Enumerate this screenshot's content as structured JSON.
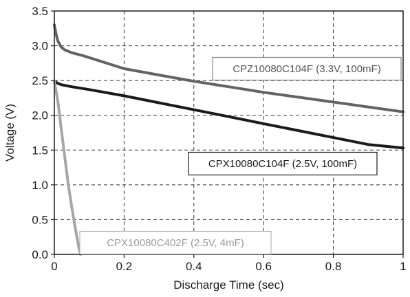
{
  "chart_data": {
    "type": "line",
    "title": "",
    "xlabel": "Discharge Time (sec)",
    "ylabel": "Voltage (V)",
    "xlim": [
      0,
      1
    ],
    "ylim": [
      0,
      3.5
    ],
    "grid": "dashed",
    "x_ticks": [
      {
        "value": 0,
        "label": "0"
      },
      {
        "value": 0.2,
        "label": "0.2"
      },
      {
        "value": 0.4,
        "label": "0.4"
      },
      {
        "value": 0.6,
        "label": "0.6"
      },
      {
        "value": 0.8,
        "label": "0.8"
      },
      {
        "value": 1,
        "label": "1"
      }
    ],
    "y_ticks": [
      {
        "value": 0,
        "label": "0.0"
      },
      {
        "value": 0.5,
        "label": "0.5"
      },
      {
        "value": 1.0,
        "label": "1.0"
      },
      {
        "value": 1.5,
        "label": "1.5"
      },
      {
        "value": 2.0,
        "label": "2.0"
      },
      {
        "value": 2.5,
        "label": "2.5"
      },
      {
        "value": 3.0,
        "label": "3.0"
      },
      {
        "value": 3.5,
        "label": "3.5"
      }
    ],
    "series": [
      {
        "name": "CPZ10080C104F (3.3V, 100mF)",
        "color": "#636363",
        "x": [
          0,
          0.005,
          0.01,
          0.02,
          0.03,
          0.05,
          0.08,
          0.1,
          0.2,
          0.3,
          0.4,
          0.5,
          0.6,
          0.7,
          0.8,
          0.9,
          1.0
        ],
        "y": [
          3.3,
          3.17,
          3.07,
          2.98,
          2.94,
          2.9,
          2.86,
          2.83,
          2.67,
          2.58,
          2.49,
          2.41,
          2.33,
          2.26,
          2.19,
          2.12,
          2.05
        ]
      },
      {
        "name": "CPX10080C104F (2.5V, 100mF)",
        "color": "#1a1a1a",
        "x": [
          0,
          0.01,
          0.02,
          0.05,
          0.1,
          0.2,
          0.3,
          0.4,
          0.5,
          0.6,
          0.7,
          0.8,
          0.9,
          1.0
        ],
        "y": [
          2.49,
          2.46,
          2.44,
          2.41,
          2.37,
          2.28,
          2.18,
          2.08,
          1.98,
          1.88,
          1.78,
          1.68,
          1.58,
          1.53
        ]
      },
      {
        "name": "CPX10080C402F (2.5V, 4mF)",
        "color": "#a6a6a6",
        "x": [
          0,
          0.01,
          0.02,
          0.03,
          0.04,
          0.05,
          0.06,
          0.07,
          0.075
        ],
        "y": [
          2.49,
          2.2,
          1.8,
          1.4,
          1.0,
          0.68,
          0.38,
          0.1,
          0.0
        ]
      }
    ],
    "labels": [
      {
        "series": 0,
        "text": "CPZ10080C104F (3.3V, 100mF)",
        "border": "#888888",
        "text_color": "#555555"
      },
      {
        "series": 1,
        "text": "CPX10080C104F (2.5V, 100mF)",
        "border": "#1a1a1a",
        "text_color": "#1a1a1a"
      },
      {
        "series": 2,
        "text": "CPX10080C402F (2.5V, 4mF)",
        "border": "#b3b3b3",
        "text_color": "#9a9a9a"
      }
    ]
  }
}
